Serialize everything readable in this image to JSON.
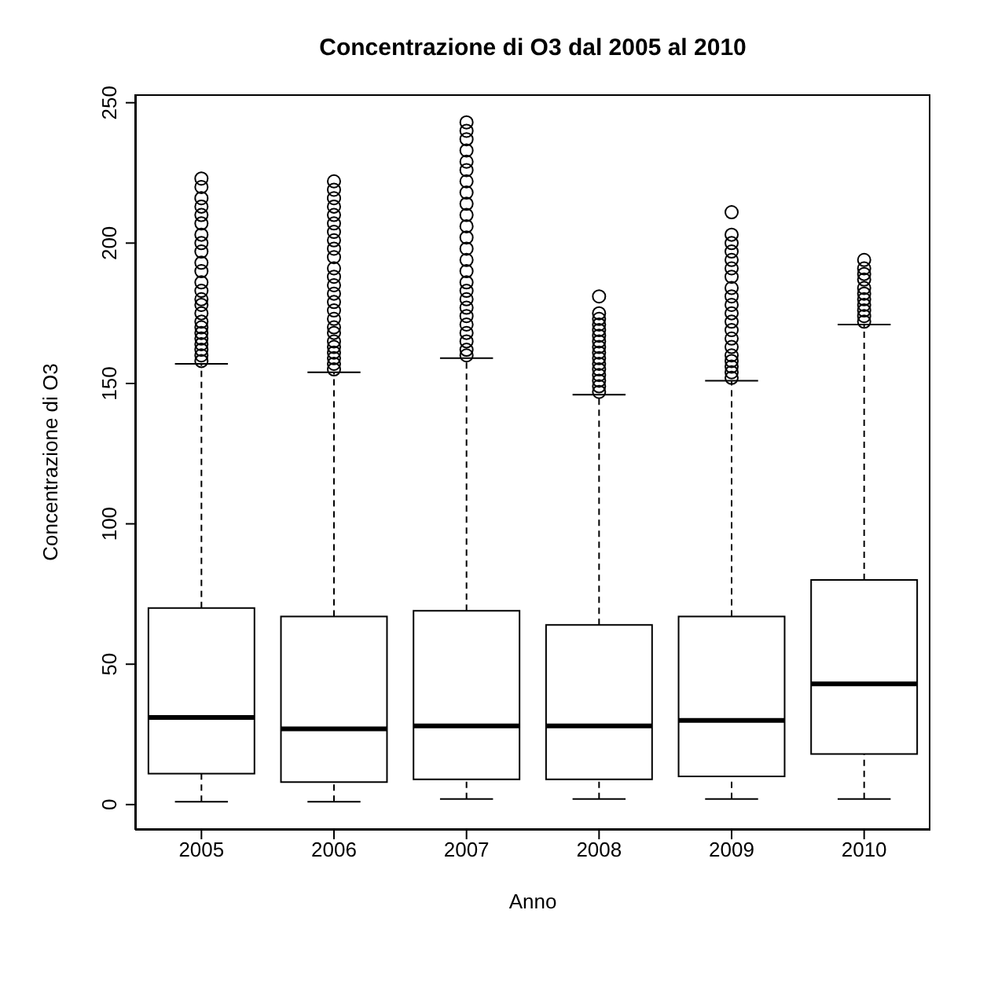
{
  "chart_data": {
    "type": "box",
    "title": "Concentrazione di O3 dal 2005 al 2010",
    "xlabel": "Anno",
    "ylabel": "Concentrazione di O3",
    "categories": [
      "2005",
      "2006",
      "2007",
      "2008",
      "2009",
      "2010"
    ],
    "boxes": [
      {
        "low": 1,
        "q1": 11,
        "median": 31,
        "q3": 70,
        "high": 157,
        "outliers": [
          158,
          160,
          162,
          164,
          166,
          168,
          170,
          172,
          175,
          178,
          180,
          183,
          186,
          190,
          193,
          197,
          200,
          203,
          207,
          210,
          213,
          216,
          220,
          223
        ]
      },
      {
        "low": 1,
        "q1": 8,
        "median": 27,
        "q3": 67,
        "high": 154,
        "outliers": [
          155,
          157,
          159,
          161,
          163,
          165,
          168,
          170,
          173,
          176,
          179,
          182,
          185,
          188,
          191,
          195,
          198,
          201,
          204,
          207,
          210,
          213,
          216,
          219,
          222
        ]
      },
      {
        "low": 2,
        "q1": 9,
        "median": 28,
        "q3": 69,
        "high": 159,
        "outliers": [
          160,
          162,
          165,
          168,
          171,
          174,
          177,
          180,
          183,
          186,
          190,
          194,
          198,
          202,
          206,
          210,
          214,
          218,
          222,
          226,
          229,
          233,
          237,
          240,
          243
        ]
      },
      {
        "low": 2,
        "q1": 9,
        "median": 28,
        "q3": 64,
        "high": 146,
        "outliers": [
          147,
          149,
          151,
          153,
          155,
          157,
          159,
          161,
          163,
          165,
          167,
          169,
          171,
          173,
          175,
          181
        ]
      },
      {
        "low": 2,
        "q1": 10,
        "median": 30,
        "q3": 67,
        "high": 151,
        "outliers": [
          152,
          154,
          156,
          158,
          160,
          163,
          166,
          169,
          172,
          175,
          178,
          181,
          184,
          188,
          191,
          194,
          197,
          200,
          203,
          211
        ]
      },
      {
        "low": 2,
        "q1": 18,
        "median": 43,
        "q3": 80,
        "high": 171,
        "outliers": [
          172,
          174,
          176,
          178,
          180,
          182,
          184,
          187,
          189,
          191,
          194
        ]
      }
    ],
    "color": "#000000",
    "marker": "circle",
    "ylim": [
      -9,
      253
    ],
    "yticks": [
      0,
      50,
      100,
      150,
      200,
      250
    ]
  }
}
